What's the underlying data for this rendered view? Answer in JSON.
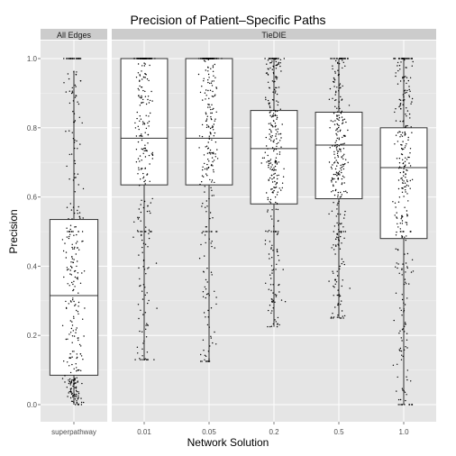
{
  "chart_data": {
    "type": "boxplot",
    "title": "Precision of Patient–Specific Paths",
    "xlabel": "Network Solution",
    "ylabel": "Precision",
    "ylim": [
      0,
      1
    ],
    "y_ticks": [
      "0.0",
      "0.2",
      "0.4",
      "0.6",
      "0.8",
      "1.0"
    ],
    "grid": true,
    "panels": [
      {
        "strip": "All Edges",
        "categories": [
          {
            "label": "superpathway",
            "whisker_low": 0.0,
            "q1": 0.085,
            "median": 0.315,
            "q3": 0.535,
            "whisker_high": 0.965
          }
        ]
      },
      {
        "strip": "TieDIE",
        "categories": [
          {
            "label": "0.01",
            "whisker_low": 0.13,
            "q1": 0.635,
            "median": 0.77,
            "q3": 1.0,
            "whisker_high": 1.0
          },
          {
            "label": "0.05",
            "whisker_low": 0.125,
            "q1": 0.635,
            "median": 0.77,
            "q3": 1.0,
            "whisker_high": 1.0
          },
          {
            "label": "0.2",
            "whisker_low": 0.225,
            "q1": 0.58,
            "median": 0.74,
            "q3": 0.85,
            "whisker_high": 1.0
          },
          {
            "label": "0.5",
            "whisker_low": 0.25,
            "q1": 0.595,
            "median": 0.75,
            "q3": 0.845,
            "whisker_high": 1.0
          },
          {
            "label": "1.0",
            "whisker_low": 0.0,
            "q1": 0.48,
            "median": 0.685,
            "q3": 0.8,
            "whisker_high": 1.0
          }
        ]
      }
    ],
    "colors": {
      "panel_bg": "#e5e5e5",
      "grid": "#ffffff",
      "strip_bg": "#cccccc",
      "box_fill": "#ffffff",
      "box_line": "#333333",
      "points": "#000000"
    }
  }
}
